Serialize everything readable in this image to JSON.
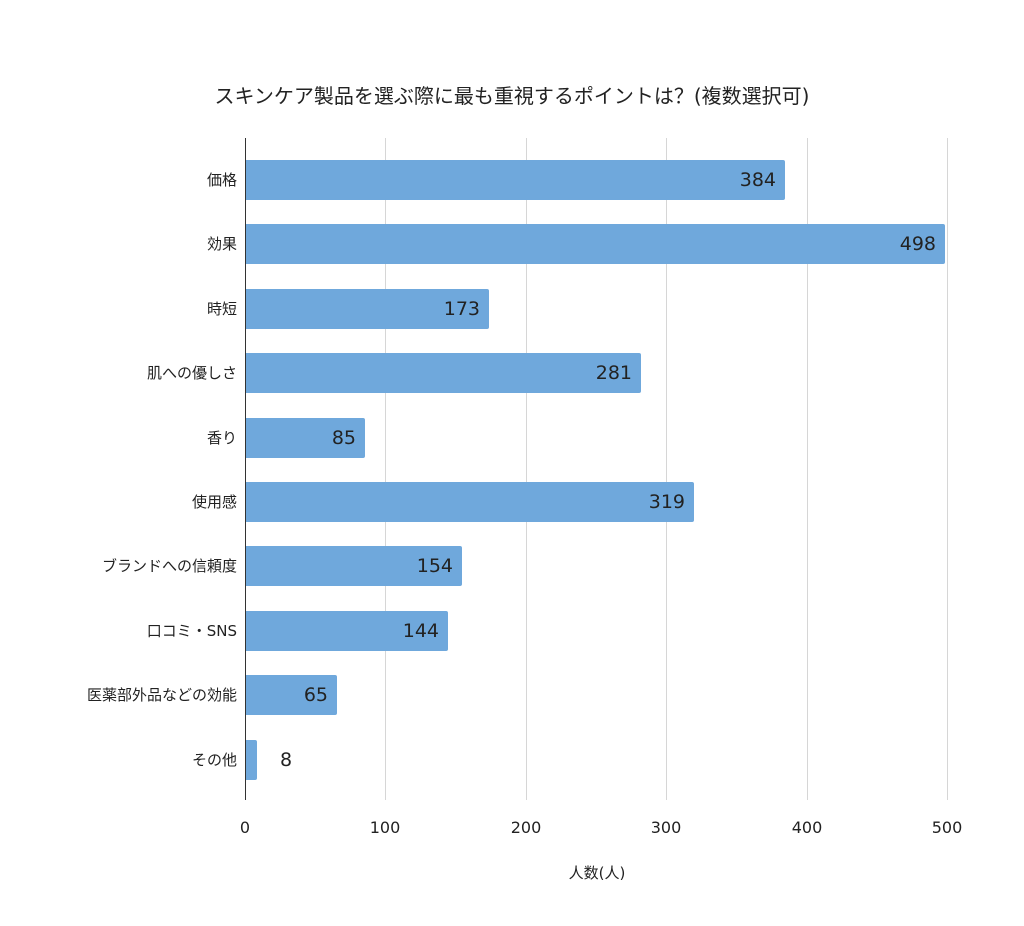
{
  "chart_data": {
    "type": "bar",
    "orientation": "horizontal",
    "title": "スキンケア製品を選ぶ際に最も重視するポイントは？(複数選択可)",
    "xlabel": "人数(人)",
    "ylabel": "",
    "categories": [
      "価格",
      "効果",
      "時短",
      "肌への優しさ",
      "香り",
      "使用感",
      "ブランドへの信頼度",
      "口コミ・SNS",
      "医薬部外品などの効能",
      "その他"
    ],
    "values": [
      384,
      498,
      173,
      281,
      85,
      319,
      154,
      144,
      65,
      8
    ],
    "xlim": [
      0,
      500
    ],
    "xticks": [
      "0",
      "100",
      "200",
      "300",
      "400",
      "500"
    ],
    "grid": "vertical",
    "legend": "none",
    "bar_color": "#6fa8dc",
    "data_labels": true
  }
}
